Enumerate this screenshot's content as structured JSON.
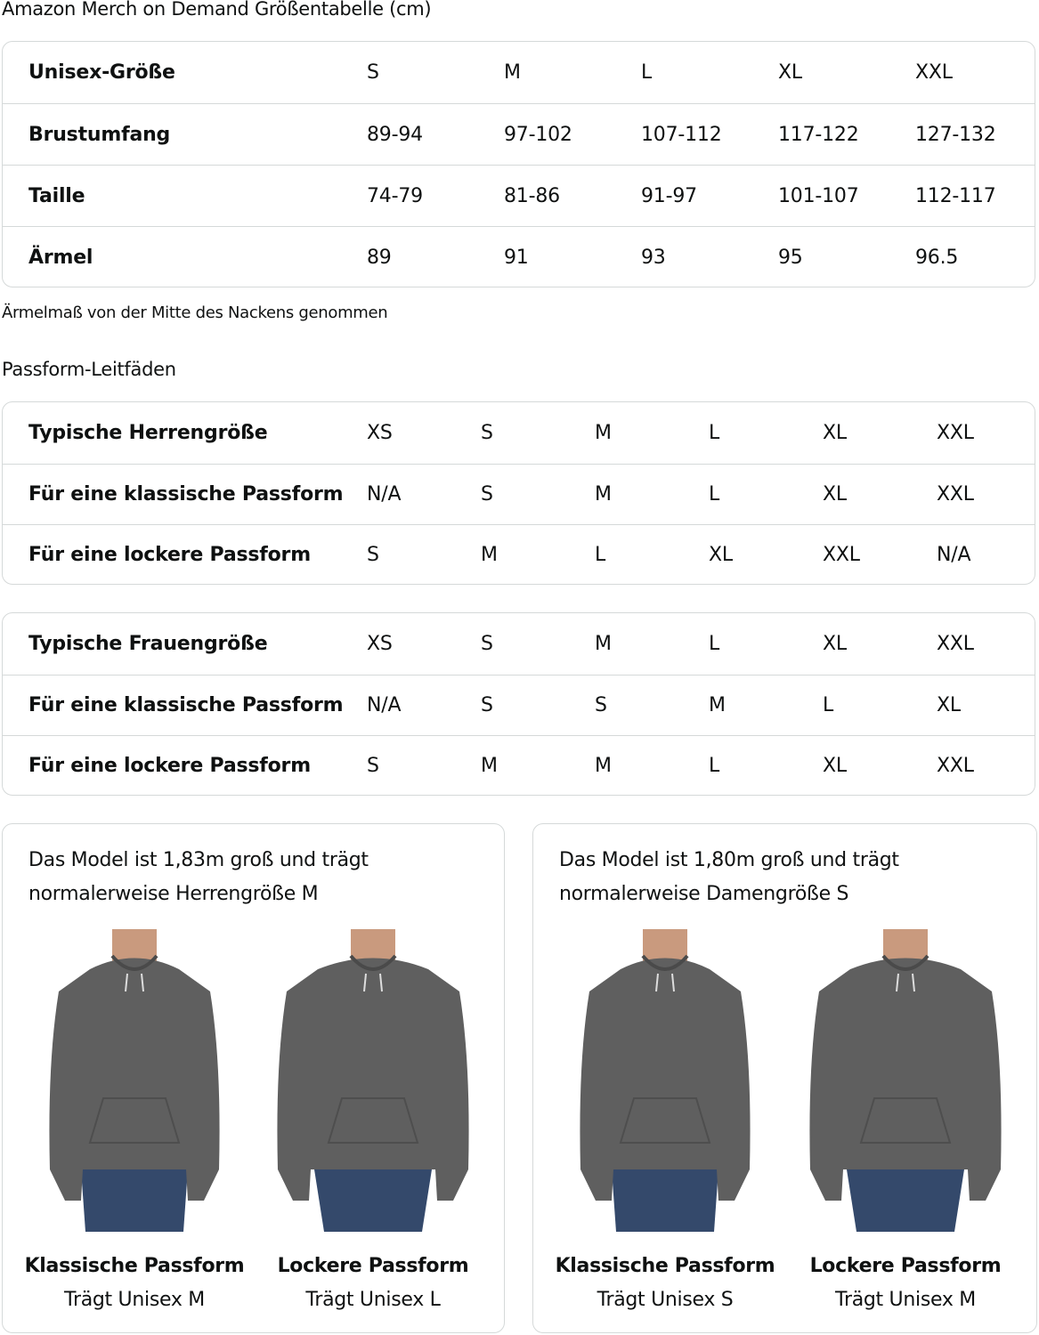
{
  "title": "Amazon Merch on Demand Größentabelle (cm)",
  "unisex_table": {
    "rows": [
      {
        "label": "Unisex-Größe",
        "values": [
          "S",
          "M",
          "L",
          "XL",
          "XXL"
        ]
      },
      {
        "label": "Brustumfang",
        "values": [
          "89-94",
          "97-102",
          "107-112",
          "117-122",
          "127-132"
        ]
      },
      {
        "label": "Taille",
        "values": [
          "74-79",
          "81-86",
          "91-97",
          "101-107",
          "112-117"
        ]
      },
      {
        "label": "Ärmel",
        "values": [
          "89",
          "91",
          "93",
          "95",
          "96.5"
        ]
      }
    ]
  },
  "footnote": "Ärmelmaß von der Mitte des Nackens genommen",
  "fit_guide_title": "Passform-Leitfäden",
  "men_table": {
    "rows": [
      {
        "label": "Typische Herrengröße",
        "values": [
          "XS",
          "S",
          "M",
          "L",
          "XL",
          "XXL"
        ]
      },
      {
        "label": "Für eine klassische Passform",
        "values": [
          "N/A",
          "S",
          "M",
          "L",
          "XL",
          "XXL"
        ]
      },
      {
        "label": "Für eine lockere Passform",
        "values": [
          "S",
          "M",
          "L",
          "XL",
          "XXL",
          "N/A"
        ]
      }
    ]
  },
  "women_table": {
    "rows": [
      {
        "label": "Typische Frauengröße",
        "values": [
          "XS",
          "S",
          "M",
          "L",
          "XL",
          "XXL"
        ]
      },
      {
        "label": "Für eine klassische Passform",
        "values": [
          "N/A",
          "S",
          "S",
          "M",
          "L",
          "XL"
        ]
      },
      {
        "label": "Für eine lockere Passform",
        "values": [
          "S",
          "M",
          "M",
          "L",
          "XL",
          "XXL"
        ]
      }
    ]
  },
  "cards": [
    {
      "text_line1": "Das Model ist 1,83m groß und trägt",
      "text_line2": "normalerweise Herrengröße M",
      "figures": [
        {
          "fit": "Klassische Passform",
          "wears": "Trägt Unisex M"
        },
        {
          "fit": "Lockere Passform",
          "wears": "Trägt Unisex L"
        }
      ]
    },
    {
      "text_line1": "Das Model ist 1,80m groß und trägt",
      "text_line2": "normalerweise Damengröße S",
      "figures": [
        {
          "fit": "Klassische Passform",
          "wears": "Trägt Unisex S"
        },
        {
          "fit": "Lockere Passform",
          "wears": "Trägt Unisex M"
        }
      ]
    }
  ],
  "colors": {
    "border": "#d5d9d9",
    "hoodie": "#5f5f5f",
    "jeans": "#34496b",
    "skin": "#c99a7e"
  }
}
